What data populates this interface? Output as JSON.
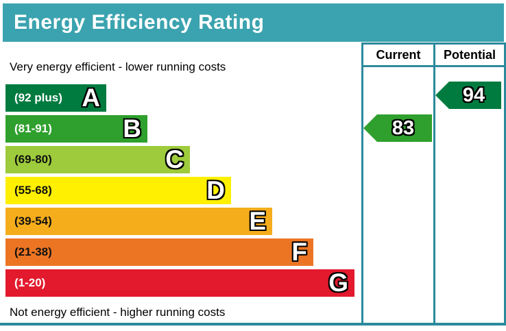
{
  "header": {
    "title": "Energy Efficiency Rating"
  },
  "table": {
    "current_label": "Current",
    "potential_label": "Potential"
  },
  "notes": {
    "top": "Very energy efficient - lower running costs",
    "bottom": "Not energy efficient - higher running costs"
  },
  "bands": [
    {
      "letter": "A",
      "range": "(92 plus)",
      "color": "#007b40"
    },
    {
      "letter": "B",
      "range": "(81-91)",
      "color": "#2fa02d"
    },
    {
      "letter": "C",
      "range": "(69-80)",
      "color": "#9dcb3c"
    },
    {
      "letter": "D",
      "range": "(55-68)",
      "color": "#fef000"
    },
    {
      "letter": "E",
      "range": "(39-54)",
      "color": "#f5ad1c"
    },
    {
      "letter": "F",
      "range": "(21-38)",
      "color": "#ec7523"
    },
    {
      "letter": "G",
      "range": "(1-20)",
      "color": "#e3192d"
    }
  ],
  "ratings": {
    "current": {
      "value": "83",
      "band": "B",
      "color": "#2fa02d"
    },
    "potential": {
      "value": "94",
      "band": "A",
      "color": "#007b40"
    }
  },
  "colors": {
    "header_bg": "#3ba3af",
    "border": "#2c8a9b",
    "header_text": "#ffffff"
  },
  "chart_data": {
    "type": "bar",
    "title": "Energy Efficiency Rating",
    "categories": [
      "A",
      "B",
      "C",
      "D",
      "E",
      "F",
      "G"
    ],
    "band_ranges": [
      "92 plus",
      "81-91",
      "69-80",
      "55-68",
      "39-54",
      "21-38",
      "1-20"
    ],
    "band_colors": [
      "#007b40",
      "#2fa02d",
      "#9dcb3c",
      "#fef000",
      "#f5ad1c",
      "#ec7523",
      "#e3192d"
    ],
    "series": [
      {
        "name": "Current",
        "value": 83,
        "band": "B"
      },
      {
        "name": "Potential",
        "value": 94,
        "band": "A"
      }
    ],
    "xlim": [
      1,
      100
    ],
    "legend_position": "top-right-columns",
    "annotations": [
      "Very energy efficient - lower running costs",
      "Not energy efficient - higher running costs"
    ]
  }
}
